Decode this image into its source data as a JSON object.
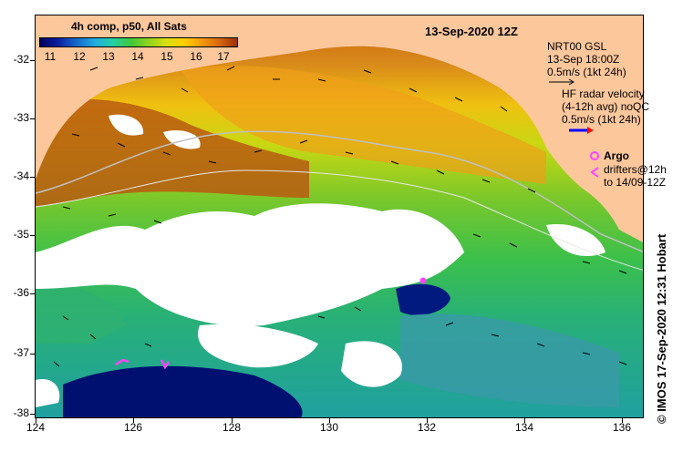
{
  "figure": {
    "date_title": "13-Sep-2020 12Z",
    "credit": "© IMOS 17-Sep-2020 12:31 Hobart"
  },
  "legend": {
    "title": "4h comp, p50, All Sats",
    "colorbar_ticks": [
      "11",
      "12",
      "13",
      "14",
      "15",
      "16",
      "17"
    ]
  },
  "annotations": {
    "gsl": [
      "NRT00 GSL",
      "13-Sep 18:00Z",
      "0.5m/s (1kt 24h)"
    ],
    "hf_radar": [
      "HF radar velocity",
      "(4-12h avg) noQC",
      "0.5m/s (1kt 24h)"
    ],
    "argo_label": "Argo",
    "drifters": [
      "drifters@12h",
      "to 14/09-12Z"
    ]
  },
  "axes": {
    "x_ticks": [
      "124",
      "126",
      "128",
      "130",
      "132",
      "134",
      "136"
    ],
    "y_ticks": [
      "-32",
      "-33",
      "-34",
      "-35",
      "-36",
      "-37",
      "-38"
    ]
  },
  "colors": {
    "land": "#fdc79c",
    "cloud": "#ffffff",
    "hf_arrow": "#0000ff",
    "argo": "#ff44ff"
  }
}
